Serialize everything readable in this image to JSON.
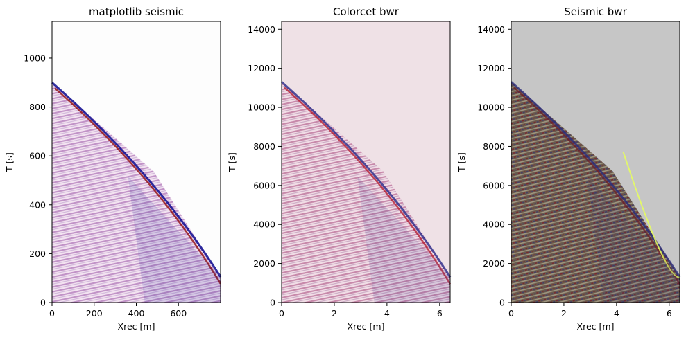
{
  "chart_data": [
    {
      "type": "heatmap",
      "title": "matplotlib seismic",
      "xlabel": "Xrec [m]",
      "ylabel": "T [s]",
      "xlim": [
        0,
        800
      ],
      "ylim": [
        1150,
        0
      ],
      "xticks": [
        0,
        200,
        400,
        600
      ],
      "yticks": [
        0,
        200,
        400,
        600,
        800,
        1000
      ],
      "xtick_labels": [
        "0",
        "200",
        "400",
        "600"
      ],
      "ytick_labels": [
        "0",
        "200",
        "400",
        "600",
        "800",
        "1000"
      ],
      "first_arrival": [
        {
          "x": 0,
          "t": 900
        },
        {
          "x": 800,
          "t": 105
        }
      ],
      "colors": {
        "background": "#fdfdfd",
        "positive": "#8b0000",
        "negative": "#00008b",
        "mid": "#ffffff",
        "texture": "#c79bc8"
      }
    },
    {
      "type": "heatmap",
      "title": "Colorcet bwr",
      "xlabel": "Xrec [m]",
      "ylabel": "T [s]",
      "xlim": [
        0,
        6.4
      ],
      "ylim": [
        14400,
        0
      ],
      "xticks": [
        0,
        2,
        4,
        6
      ],
      "yticks": [
        0,
        2000,
        4000,
        6000,
        8000,
        10000,
        12000,
        14000
      ],
      "xtick_labels": [
        "0",
        "2",
        "4",
        "6"
      ],
      "ytick_labels": [
        "0",
        "2000",
        "4000",
        "6000",
        "8000",
        "10000",
        "12000",
        "14000"
      ],
      "first_arrival": [
        {
          "x": 0,
          "t": 11300
        },
        {
          "x": 6.4,
          "t": 1300
        }
      ],
      "colors": {
        "background": "#efe1e6",
        "positive": "#b2182b",
        "negative": "#2a2a8a",
        "mid": "#f4e6ec",
        "texture": "#d39ab8"
      }
    },
    {
      "type": "heatmap",
      "title": "Seismic bwr",
      "xlabel": "Xrec [m]",
      "ylabel": "T [s]",
      "xlim": [
        0,
        6.4
      ],
      "ylim": [
        14400,
        0
      ],
      "xticks": [
        0,
        2,
        4,
        6
      ],
      "yticks": [
        0,
        2000,
        4000,
        6000,
        8000,
        10000,
        12000,
        14000
      ],
      "xtick_labels": [
        "0",
        "2",
        "4",
        "6"
      ],
      "ytick_labels": [
        "0",
        "2000",
        "4000",
        "6000",
        "8000",
        "10000",
        "12000",
        "14000"
      ],
      "first_arrival": [
        {
          "x": 0,
          "t": 11300
        },
        {
          "x": 6.4,
          "t": 1300
        }
      ],
      "colors": {
        "background": "#c6c6c6",
        "positive": "#6a1f2a",
        "negative": "#2a2a7a",
        "mid": "#5e5448",
        "texture": "#a8a292",
        "accent": "#e6ff5a"
      }
    }
  ]
}
